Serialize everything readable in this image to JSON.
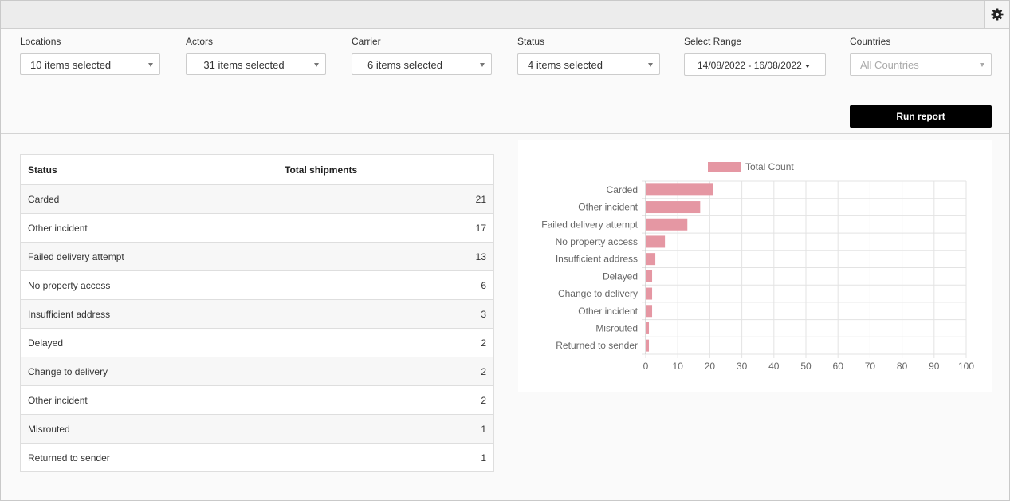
{
  "filters": [
    {
      "label": "Locations",
      "value": "10 items selected"
    },
    {
      "label": "Actors",
      "value": "31 items selected"
    },
    {
      "label": "Carrier",
      "value": "6 items selected"
    },
    {
      "label": "Status",
      "value": "4 items selected"
    },
    {
      "label": "Select Range",
      "value": "14/08/2022 - 16/08/2022"
    },
    {
      "label": "Countries",
      "placeholder": "All Countries"
    }
  ],
  "run_button_label": "Run report",
  "table": {
    "headers": [
      "Status",
      "Total shipments"
    ],
    "rows": [
      {
        "status": "Carded",
        "total": "21"
      },
      {
        "status": "Other incident",
        "total": "17"
      },
      {
        "status": "Failed delivery attempt",
        "total": "13"
      },
      {
        "status": "No property access",
        "total": "6"
      },
      {
        "status": "Insufficient address",
        "total": "3"
      },
      {
        "status": "Delayed",
        "total": "2"
      },
      {
        "status": "Change to delivery",
        "total": "2"
      },
      {
        "status": "Other incident",
        "total": "2"
      },
      {
        "status": "Misrouted",
        "total": "1"
      },
      {
        "status": "Returned to sender",
        "total": "1"
      }
    ]
  },
  "icons": {
    "settings": "gear-icon",
    "dropdown": "caret-down-icon"
  },
  "colors": {
    "bar": "#e597a3",
    "button": "#000000"
  },
  "chart_data": {
    "type": "bar",
    "orientation": "horizontal",
    "categories": [
      "Carded",
      "Other incident",
      "Failed delivery attempt",
      "No property access",
      "Insufficient address",
      "Delayed",
      "Change to delivery",
      "Other incident",
      "Misrouted",
      "Returned to sender"
    ],
    "series": [
      {
        "name": "Total Count",
        "values": [
          21,
          17,
          13,
          6,
          3,
          2,
          2,
          2,
          1,
          1
        ]
      }
    ],
    "xlim": [
      0,
      100
    ],
    "x_ticks": [
      0,
      10,
      20,
      30,
      40,
      50,
      60,
      70,
      80,
      90,
      100
    ],
    "grid": true,
    "legend": "top"
  }
}
